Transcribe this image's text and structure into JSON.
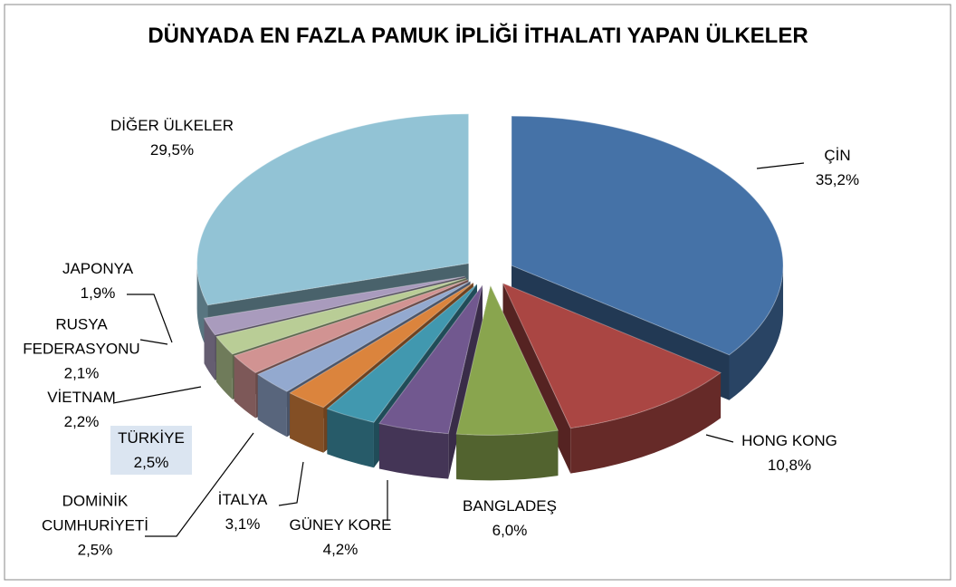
{
  "chart_data": {
    "type": "pie3d",
    "title": "DÜNYADA EN FAZLA PAMUK İPLİĞİ İTHALATI YAPAN ÜLKELER",
    "categories": [
      "ÇİN",
      "HONG KONG",
      "BANGLADEŞ",
      "GÜNEY KORE",
      "İTALYA",
      "DOMİNİK CUMHURİYETİ",
      "TÜRKİYE",
      "VİETNAM",
      "RUSYA FEDERASYONU",
      "JAPONYA",
      "DİĞER ÜLKELER"
    ],
    "values": [
      35.2,
      10.8,
      6.0,
      4.2,
      3.1,
      2.5,
      2.5,
      2.2,
      2.1,
      1.9,
      29.5
    ],
    "value_labels": [
      "35,2%",
      "10,8%",
      "6,0%",
      "4,2%",
      "3,1%",
      "2,5%",
      "2,5%",
      "2,2%",
      "2,1%",
      "1,9%",
      "29,5%"
    ],
    "colors": [
      "#4572a7",
      "#aa4643",
      "#89a54e",
      "#71588f",
      "#4198af",
      "#db843d",
      "#93a9cf",
      "#d19392",
      "#b9cd96",
      "#a99bbd",
      "#92c3d5"
    ]
  }
}
